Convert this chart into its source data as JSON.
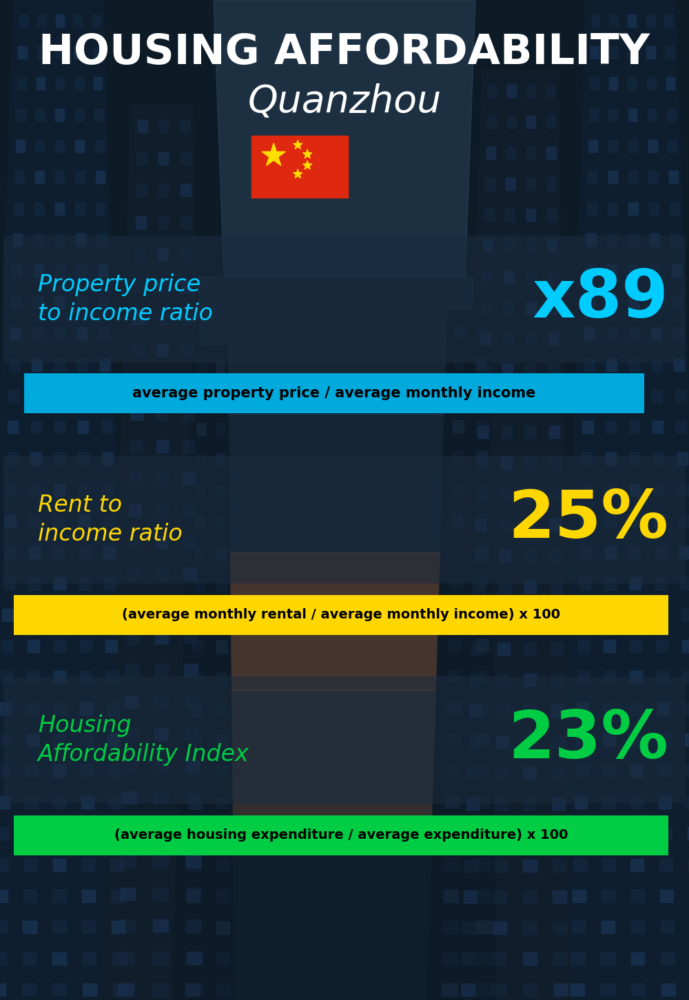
{
  "title_line1": "HOUSING AFFORDABILITY",
  "title_line2": "Quanzhou",
  "bg_color": "#0d1b27",
  "section1_label": "Property price\nto income ratio",
  "section1_value": "x89",
  "section1_label_color": "#00ccff",
  "section1_value_color": "#00ccff",
  "section1_formula": "average property price / average monthly income",
  "section1_formula_bg": "#00aadd",
  "section1_formula_text_color": "#000000",
  "section2_label": "Rent to\nincome ratio",
  "section2_value": "25%",
  "section2_label_color": "#ffd700",
  "section2_value_color": "#ffd700",
  "section2_formula": "(average monthly rental / average monthly income) x 100",
  "section2_formula_bg": "#ffd700",
  "section2_formula_text_color": "#000000",
  "section3_label": "Housing\nAffordability Index",
  "section3_value": "23%",
  "section3_label_color": "#00cc44",
  "section3_value_color": "#00cc44",
  "section3_formula": "(average housing expenditure / average expenditure) x 100",
  "section3_formula_bg": "#00cc44",
  "section3_formula_text_color": "#000000",
  "panel_bg_color": "#1a2c40",
  "panel_alpha": 0.55,
  "flag_red": "#de2910",
  "flag_yellow": "#ffde00"
}
